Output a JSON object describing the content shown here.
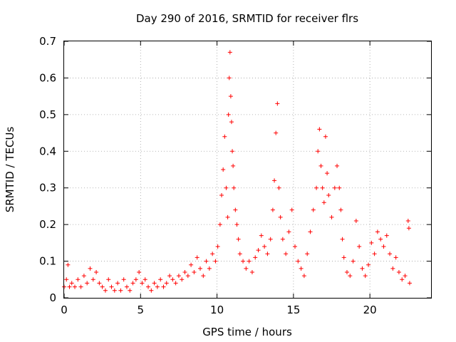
{
  "chart_data": {
    "type": "scatter",
    "title": "Day 290 of 2016, SRMTID for receiver flrs",
    "xlabel": "GPS time / hours",
    "ylabel": "SRMTID / TECUs",
    "xlim": [
      0,
      24
    ],
    "ylim": [
      0,
      0.7
    ],
    "xticks": [
      0,
      5,
      10,
      15,
      20
    ],
    "yticks": [
      0,
      0.1,
      0.2,
      0.3,
      0.4,
      0.5,
      0.6,
      0.7
    ],
    "xtick_labels": [
      "0",
      "5",
      "10",
      "15",
      "20"
    ],
    "ytick_labels": [
      "0",
      "0.1",
      "0.2",
      "0.3",
      "0.4",
      "0.5",
      "0.6",
      "0.7"
    ],
    "grid": true,
    "marker": "+",
    "series": [
      {
        "name": "SRMTID",
        "color": "#ff0000",
        "points": [
          [
            0.0,
            0.03
          ],
          [
            0.15,
            0.05
          ],
          [
            0.25,
            0.09
          ],
          [
            0.35,
            0.03
          ],
          [
            0.5,
            0.04
          ],
          [
            0.7,
            0.03
          ],
          [
            0.9,
            0.05
          ],
          [
            1.1,
            0.03
          ],
          [
            1.3,
            0.06
          ],
          [
            1.5,
            0.04
          ],
          [
            1.7,
            0.08
          ],
          [
            1.9,
            0.05
          ],
          [
            2.1,
            0.07
          ],
          [
            2.3,
            0.04
          ],
          [
            2.5,
            0.03
          ],
          [
            2.7,
            0.02
          ],
          [
            2.9,
            0.05
          ],
          [
            3.1,
            0.03
          ],
          [
            3.3,
            0.02
          ],
          [
            3.5,
            0.04
          ],
          [
            3.7,
            0.02
          ],
          [
            3.9,
            0.05
          ],
          [
            4.1,
            0.03
          ],
          [
            4.3,
            0.02
          ],
          [
            4.5,
            0.04
          ],
          [
            4.7,
            0.05
          ],
          [
            4.9,
            0.07
          ],
          [
            5.1,
            0.04
          ],
          [
            5.3,
            0.05
          ],
          [
            5.5,
            0.03
          ],
          [
            5.7,
            0.02
          ],
          [
            5.9,
            0.04
          ],
          [
            6.1,
            0.03
          ],
          [
            6.3,
            0.05
          ],
          [
            6.5,
            0.03
          ],
          [
            6.7,
            0.04
          ],
          [
            6.9,
            0.06
          ],
          [
            7.1,
            0.05
          ],
          [
            7.3,
            0.04
          ],
          [
            7.5,
            0.06
          ],
          [
            7.7,
            0.05
          ],
          [
            7.9,
            0.07
          ],
          [
            8.1,
            0.06
          ],
          [
            8.3,
            0.09
          ],
          [
            8.5,
            0.07
          ],
          [
            8.7,
            0.11
          ],
          [
            8.9,
            0.08
          ],
          [
            9.1,
            0.06
          ],
          [
            9.3,
            0.1
          ],
          [
            9.5,
            0.08
          ],
          [
            9.7,
            0.12
          ],
          [
            9.9,
            0.1
          ],
          [
            10.05,
            0.14
          ],
          [
            10.2,
            0.2
          ],
          [
            10.3,
            0.28
          ],
          [
            10.4,
            0.35
          ],
          [
            10.5,
            0.44
          ],
          [
            10.6,
            0.3
          ],
          [
            10.7,
            0.22
          ],
          [
            10.75,
            0.5
          ],
          [
            10.8,
            0.6
          ],
          [
            10.85,
            0.67
          ],
          [
            10.9,
            0.55
          ],
          [
            10.95,
            0.48
          ],
          [
            11.0,
            0.4
          ],
          [
            11.05,
            0.36
          ],
          [
            11.1,
            0.3
          ],
          [
            11.2,
            0.24
          ],
          [
            11.3,
            0.2
          ],
          [
            11.4,
            0.16
          ],
          [
            11.5,
            0.12
          ],
          [
            11.7,
            0.1
          ],
          [
            11.9,
            0.08
          ],
          [
            12.1,
            0.1
          ],
          [
            12.3,
            0.07
          ],
          [
            12.5,
            0.11
          ],
          [
            12.7,
            0.13
          ],
          [
            12.9,
            0.17
          ],
          [
            13.1,
            0.14
          ],
          [
            13.3,
            0.12
          ],
          [
            13.5,
            0.16
          ],
          [
            13.65,
            0.24
          ],
          [
            13.75,
            0.32
          ],
          [
            13.85,
            0.45
          ],
          [
            13.95,
            0.53
          ],
          [
            14.05,
            0.3
          ],
          [
            14.15,
            0.22
          ],
          [
            14.3,
            0.16
          ],
          [
            14.5,
            0.12
          ],
          [
            14.7,
            0.18
          ],
          [
            14.9,
            0.24
          ],
          [
            15.1,
            0.14
          ],
          [
            15.3,
            0.1
          ],
          [
            15.5,
            0.08
          ],
          [
            15.7,
            0.06
          ],
          [
            15.9,
            0.12
          ],
          [
            16.1,
            0.18
          ],
          [
            16.3,
            0.24
          ],
          [
            16.5,
            0.3
          ],
          [
            16.6,
            0.4
          ],
          [
            16.7,
            0.46
          ],
          [
            16.8,
            0.36
          ],
          [
            16.9,
            0.3
          ],
          [
            17.0,
            0.26
          ],
          [
            17.1,
            0.44
          ],
          [
            17.2,
            0.34
          ],
          [
            17.3,
            0.28
          ],
          [
            17.5,
            0.22
          ],
          [
            17.7,
            0.3
          ],
          [
            17.85,
            0.36
          ],
          [
            18.0,
            0.3
          ],
          [
            18.1,
            0.24
          ],
          [
            18.2,
            0.16
          ],
          [
            18.3,
            0.11
          ],
          [
            18.5,
            0.07
          ],
          [
            18.7,
            0.06
          ],
          [
            18.9,
            0.1
          ],
          [
            19.1,
            0.21
          ],
          [
            19.3,
            0.14
          ],
          [
            19.5,
            0.08
          ],
          [
            19.7,
            0.06
          ],
          [
            19.9,
            0.09
          ],
          [
            20.1,
            0.15
          ],
          [
            20.3,
            0.12
          ],
          [
            20.5,
            0.18
          ],
          [
            20.7,
            0.16
          ],
          [
            20.9,
            0.14
          ],
          [
            21.1,
            0.17
          ],
          [
            21.3,
            0.12
          ],
          [
            21.5,
            0.08
          ],
          [
            21.7,
            0.11
          ],
          [
            21.9,
            0.07
          ],
          [
            22.1,
            0.05
          ],
          [
            22.3,
            0.06
          ],
          [
            22.5,
            0.21
          ],
          [
            22.55,
            0.19
          ],
          [
            22.6,
            0.04
          ]
        ]
      }
    ]
  }
}
